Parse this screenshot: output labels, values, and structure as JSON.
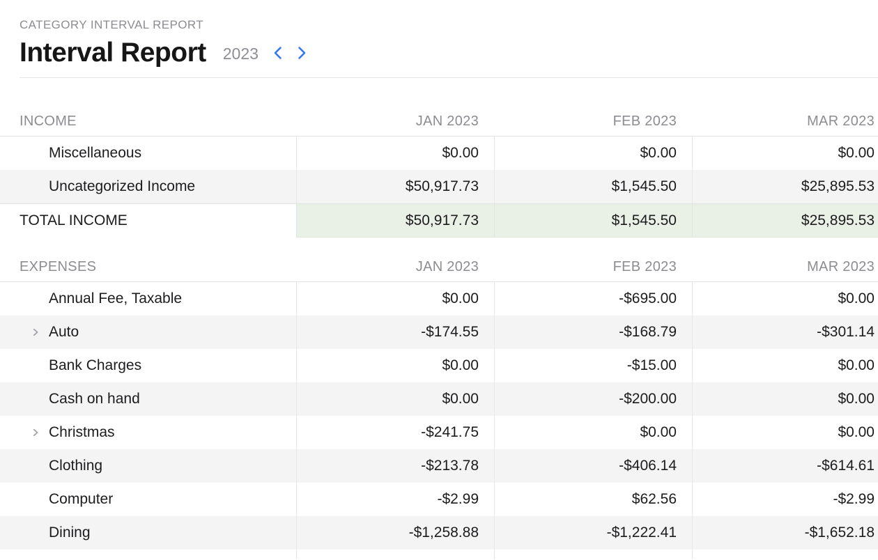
{
  "header": {
    "eyebrow": "CATEGORY INTERVAL REPORT",
    "title": "Interval Report",
    "year": "2023",
    "prev_year_label": "Previous year",
    "next_year_label": "Next year"
  },
  "columns": [
    "JAN 2023",
    "FEB 2023",
    "MAR 2023"
  ],
  "sections": [
    {
      "id": "income",
      "label": "INCOME",
      "rows": [
        {
          "name": "Miscellaneous",
          "expandable": false,
          "values": [
            "$0.00",
            "$0.00",
            "$0.00"
          ]
        },
        {
          "name": "Uncategorized Income",
          "expandable": false,
          "values": [
            "$50,917.73",
            "$1,545.50",
            "$25,895.53"
          ]
        }
      ],
      "total": {
        "label": "TOTAL INCOME",
        "values": [
          "$50,917.73",
          "$1,545.50",
          "$25,895.53"
        ]
      }
    },
    {
      "id": "expenses",
      "label": "EXPENSES",
      "rows": [
        {
          "name": "Annual Fee, Taxable",
          "expandable": false,
          "values": [
            "$0.00",
            "-$695.00",
            "$0.00"
          ]
        },
        {
          "name": "Auto",
          "expandable": true,
          "values": [
            "-$174.55",
            "-$168.79",
            "-$301.14"
          ]
        },
        {
          "name": "Bank Charges",
          "expandable": false,
          "values": [
            "$0.00",
            "-$15.00",
            "$0.00"
          ]
        },
        {
          "name": "Cash on hand",
          "expandable": false,
          "values": [
            "$0.00",
            "-$200.00",
            "$0.00"
          ]
        },
        {
          "name": "Christmas",
          "expandable": true,
          "values": [
            "-$241.75",
            "$0.00",
            "$0.00"
          ]
        },
        {
          "name": "Clothing",
          "expandable": false,
          "values": [
            "-$213.78",
            "-$406.14",
            "-$614.61"
          ]
        },
        {
          "name": "Computer",
          "expandable": false,
          "values": [
            "-$2.99",
            "$62.56",
            "-$2.99"
          ]
        },
        {
          "name": "Dining",
          "expandable": false,
          "values": [
            "-$1,258.88",
            "-$1,222.41",
            "-$1,652.18"
          ]
        }
      ],
      "total": null
    }
  ],
  "icons": {
    "prev": "chevron-left-icon",
    "next": "chevron-right-icon",
    "expand": "chevron-right-icon"
  },
  "colors": {
    "accent_blue": "#3377f6",
    "row_stripe": "#f4f4f5",
    "total_green": "#e9f1e6",
    "muted_text": "#8c8c91",
    "text": "#1c1c1e",
    "border": "#e3e3e5",
    "disclosure_gray": "#a2a2a7"
  }
}
